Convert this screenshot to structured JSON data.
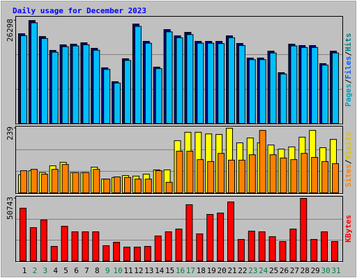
{
  "title": "Daily usage for December 2023",
  "categories": [
    "1",
    "2",
    "3",
    "4",
    "5",
    "6",
    "7",
    "8",
    "9",
    "10",
    "11",
    "12",
    "13",
    "14",
    "15",
    "16",
    "17",
    "18",
    "19",
    "20",
    "21",
    "22",
    "23",
    "24",
    "25",
    "26",
    "27",
    "28",
    "29",
    "30",
    "31"
  ],
  "category_colors": [
    "#000000",
    "#008040",
    "#008040",
    "#000000",
    "#000000",
    "#000000",
    "#000000",
    "#000000",
    "#008040",
    "#008040",
    "#000000",
    "#000000",
    "#000000",
    "#000000",
    "#000000",
    "#008040",
    "#008040",
    "#000000",
    "#000000",
    "#000000",
    "#000000",
    "#000000",
    "#008040",
    "#008040",
    "#000000",
    "#000000",
    "#000000",
    "#000000",
    "#000000",
    "#008040",
    "#008040"
  ],
  "chart_data": [
    {
      "type": "bar",
      "ylim": [
        0,
        26298
      ],
      "yticks": [
        26298
      ],
      "legend": [
        {
          "name": "Pages",
          "color": "#00a0c0"
        },
        {
          "name": "Files",
          "color": "#0060ff"
        },
        {
          "name": "Hits",
          "color": "#008080"
        }
      ],
      "separator": "/",
      "series": [
        {
          "color": "#000080",
          "values": [
            22923,
            26298,
            22211,
            18658,
            20080,
            20258,
            20613,
            19192,
            14216,
            10662,
            16526,
            25411,
            20969,
            14394,
            23990,
            22390,
            23279,
            20969,
            20969,
            20969,
            22390,
            20436,
            16704,
            16704,
            18481,
            12972,
            20258,
            19902,
            19902,
            15282,
            18481
          ]
        },
        {
          "color": "#00bfff",
          "values": [
            22400,
            25700,
            21700,
            18200,
            19600,
            19800,
            20100,
            18700,
            13800,
            10300,
            16100,
            24800,
            20500,
            14000,
            23400,
            21900,
            22700,
            20500,
            20500,
            20400,
            21900,
            19900,
            16300,
            16300,
            18000,
            12600,
            19800,
            19400,
            19400,
            14900,
            18000
          ]
        }
      ]
    },
    {
      "type": "bar",
      "ylim": [
        0,
        239
      ],
      "yticks": [
        239
      ],
      "legend": [
        {
          "name": "Sites",
          "color": "#ff8000"
        },
        {
          "name": "Visits",
          "color": "#e0c000"
        }
      ],
      "separator": "/",
      "series": [
        {
          "color": "#ffff00",
          "values": [
            67,
            82,
            75,
            100,
            113,
            75,
            75,
            95,
            51,
            57,
            64,
            62,
            69,
            85,
            85,
            193,
            224,
            224,
            218,
            216,
            239,
            185,
            203,
            185,
            177,
            162,
            170,
            206,
            231,
            167,
            198
          ]
        },
        {
          "color": "#ff8000",
          "values": [
            82,
            87,
            69,
            87,
            105,
            75,
            75,
            87,
            51,
            59,
            57,
            51,
            51,
            82,
            39,
            154,
            154,
            123,
            116,
            146,
            121,
            121,
            141,
            231,
            141,
            129,
            123,
            146,
            131,
            116,
            108
          ]
        }
      ]
    },
    {
      "type": "bar",
      "ylim": [
        0,
        50743
      ],
      "yticks": [
        50743
      ],
      "legend": [
        {
          "name": "KBytes",
          "color": "#ff0000"
        }
      ],
      "series": [
        {
          "color": "#ff0000",
          "values": [
            42849,
            27062,
            33264,
            11840,
            28190,
            23680,
            23680,
            23680,
            12404,
            15223,
            11276,
            11276,
            11840,
            20297,
            23680,
            25935,
            45668,
            21988,
            37775,
            38902,
            47923,
            17478,
            24243,
            23680,
            19733,
            15786,
            25935,
            50743,
            17478,
            23680,
            15786
          ]
        }
      ]
    }
  ]
}
